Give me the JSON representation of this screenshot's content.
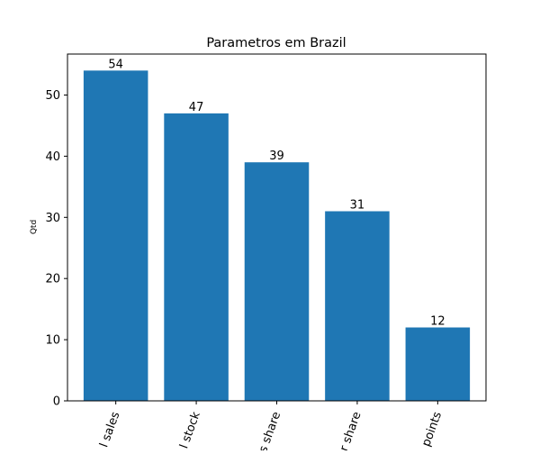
{
  "chart_data": {
    "type": "bar",
    "title": "Parametros em Brazil",
    "ylabel": "Qtd",
    "xlabel": "",
    "categories": [
      "l sales",
      "l stock",
      "s share",
      "r share",
      "points"
    ],
    "values": [
      54,
      47,
      39,
      31,
      12
    ],
    "data_labels": [
      "54",
      "47",
      "39",
      "31",
      "12"
    ],
    "ylim": [
      0,
      56.7
    ],
    "yticks": [
      0,
      10,
      20,
      30,
      40,
      50
    ],
    "grid": false,
    "legend": "none",
    "bar_color": "#1f77b4"
  }
}
